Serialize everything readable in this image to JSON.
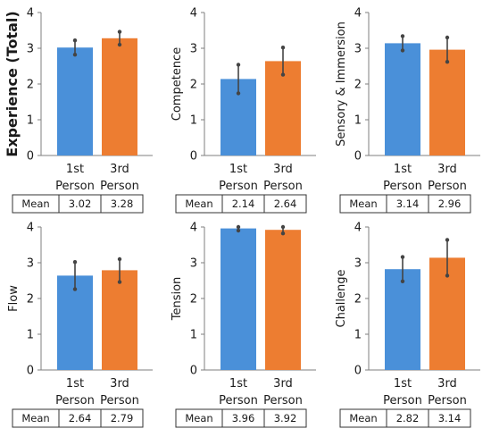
{
  "colors": {
    "first_person": "#4a90d9",
    "third_person": "#ed7d31",
    "error_bar": "#444444",
    "axis": "#7f7f7f"
  },
  "table_row_label": "Mean",
  "chart_data": [
    {
      "type": "bar",
      "ylabel": "Experience (Total)",
      "ylim": [
        0,
        4
      ],
      "yticks": [
        0,
        1,
        2,
        3,
        4
      ],
      "categories": [
        [
          "1st",
          "Person"
        ],
        [
          "3rd",
          "Person"
        ]
      ],
      "values": [
        3.02,
        3.28
      ],
      "error_low": [
        2.82,
        3.1
      ],
      "error_high": [
        3.22,
        3.46
      ],
      "table_values": [
        "3.02",
        "3.28"
      ]
    },
    {
      "type": "bar",
      "ylabel": "Competence",
      "ylim": [
        0,
        4
      ],
      "yticks": [
        0,
        1,
        2,
        3,
        4
      ],
      "categories": [
        [
          "1st",
          "Person"
        ],
        [
          "3rd",
          "Person"
        ]
      ],
      "values": [
        2.14,
        2.64
      ],
      "error_low": [
        1.74,
        2.26
      ],
      "error_high": [
        2.54,
        3.02
      ],
      "table_values": [
        "2.14",
        "2.64"
      ]
    },
    {
      "type": "bar",
      "ylabel": "Sensory & Immersion",
      "ylim": [
        0,
        4
      ],
      "yticks": [
        0,
        1,
        2,
        3,
        4
      ],
      "categories": [
        [
          "1st",
          "Person"
        ],
        [
          "3rd",
          "Person"
        ]
      ],
      "values": [
        3.14,
        2.96
      ],
      "error_low": [
        2.94,
        2.62
      ],
      "error_high": [
        3.34,
        3.3
      ],
      "table_values": [
        "3.14",
        "2.96"
      ]
    },
    {
      "type": "bar",
      "ylabel": "Flow",
      "ylim": [
        0,
        4
      ],
      "yticks": [
        0,
        1,
        2,
        3,
        4
      ],
      "categories": [
        [
          "1st",
          "Person"
        ],
        [
          "3rd",
          "Person"
        ]
      ],
      "values": [
        2.64,
        2.79
      ],
      "error_low": [
        2.26,
        2.46
      ],
      "error_high": [
        3.02,
        3.1
      ],
      "table_values": [
        "2.64",
        "2.79"
      ]
    },
    {
      "type": "bar",
      "ylabel": "Tension",
      "ylim": [
        0,
        4
      ],
      "yticks": [
        0,
        1,
        2,
        3,
        4
      ],
      "categories": [
        [
          "1st",
          "Person"
        ],
        [
          "3rd",
          "Person"
        ]
      ],
      "values": [
        3.96,
        3.92
      ],
      "error_low": [
        3.9,
        3.82
      ],
      "error_high": [
        4.0,
        4.0
      ],
      "table_values": [
        "3.96",
        "3.92"
      ]
    },
    {
      "type": "bar",
      "ylabel": "Challenge",
      "ylim": [
        0,
        4
      ],
      "yticks": [
        0,
        1,
        2,
        3,
        4
      ],
      "categories": [
        [
          "1st",
          "Person"
        ],
        [
          "3rd",
          "Person"
        ]
      ],
      "values": [
        2.82,
        3.14
      ],
      "error_low": [
        2.48,
        2.64
      ],
      "error_high": [
        3.16,
        3.64
      ],
      "table_values": [
        "2.82",
        "3.14"
      ]
    }
  ]
}
